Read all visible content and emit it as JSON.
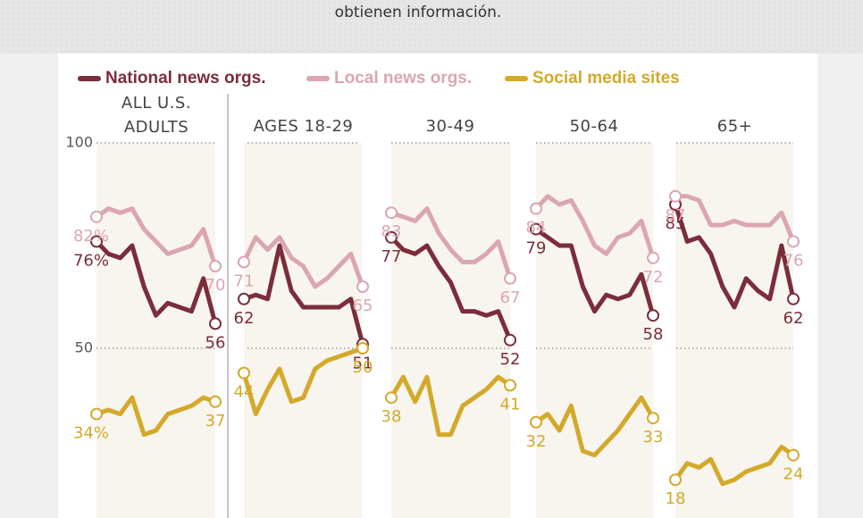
{
  "page": {
    "caption": "obtienen información."
  },
  "chart_data": [
    {
      "type": "line",
      "title": "ALL U.S. ADULTS",
      "ylim": [
        10,
        100
      ],
      "yticks": [
        50,
        100
      ],
      "grid": true,
      "series": [
        {
          "name": "National news orgs.",
          "color": "#7b2d3b",
          "values": [
            76,
            73,
            72,
            75,
            65,
            58,
            61,
            60,
            59,
            67,
            56
          ],
          "value_labels": [
            "76%",
            null,
            null,
            null,
            null,
            null,
            null,
            null,
            null,
            null,
            null
          ]
        },
        {
          "name": "Local news orgs.",
          "color": "#dba6b0",
          "values": [
            82,
            84,
            83,
            84,
            79,
            76,
            73,
            74,
            75,
            79,
            70
          ],
          "value_labels": [
            "82%",
            null,
            null,
            null,
            null,
            null,
            null,
            null,
            null,
            null,
            null
          ]
        },
        {
          "name": "Social media sites",
          "color": "#d4a92a",
          "values": [
            34,
            35,
            34,
            38,
            29,
            30,
            34,
            35,
            36,
            38,
            37
          ],
          "value_labels": [
            "34%",
            null,
            null,
            null,
            null,
            null,
            null,
            null,
            null,
            null,
            null
          ]
        }
      ]
    },
    {
      "type": "line",
      "title": "AGES 18-29",
      "ylim": [
        10,
        100
      ],
      "series": [
        {
          "color": "#7b2d3b",
          "values": [
            62,
            63,
            62,
            75,
            64,
            60,
            60,
            60,
            60,
            62,
            51
          ]
        },
        {
          "color": "#dba6b0",
          "values": [
            71,
            77,
            74,
            77,
            72,
            70,
            65,
            67,
            70,
            73,
            65
          ]
        },
        {
          "color": "#d4a92a",
          "values": [
            44,
            34,
            40,
            45,
            37,
            38,
            45,
            47,
            48,
            49,
            50
          ]
        }
      ]
    },
    {
      "type": "line",
      "title": "30-49",
      "ylim": [
        10,
        100
      ],
      "series": [
        {
          "color": "#7b2d3b",
          "values": [
            77,
            74,
            73,
            75,
            70,
            66,
            59,
            59,
            58,
            59,
            52
          ]
        },
        {
          "color": "#dba6b0",
          "values": [
            83,
            82,
            81,
            84,
            78,
            74,
            71,
            71,
            73,
            76,
            67
          ]
        },
        {
          "color": "#d4a92a",
          "values": [
            38,
            43,
            37,
            43,
            29,
            29,
            36,
            38,
            40,
            43,
            41
          ]
        }
      ]
    },
    {
      "type": "line",
      "title": "50-64",
      "ylim": [
        10,
        100
      ],
      "series": [
        {
          "color": "#7b2d3b",
          "values": [
            79,
            77,
            75,
            75,
            65,
            59,
            63,
            62,
            63,
            68,
            58
          ]
        },
        {
          "color": "#dba6b0",
          "values": [
            84,
            87,
            85,
            86,
            81,
            75,
            73,
            77,
            78,
            81,
            72
          ]
        },
        {
          "color": "#d4a92a",
          "values": [
            32,
            34,
            30,
            36,
            25,
            24,
            27,
            30,
            34,
            38,
            33
          ]
        }
      ]
    },
    {
      "type": "line",
      "title": "65+",
      "ylim": [
        10,
        100
      ],
      "series": [
        {
          "color": "#7b2d3b",
          "values": [
            85,
            76,
            77,
            73,
            65,
            60,
            67,
            64,
            62,
            75,
            62
          ]
        },
        {
          "color": "#dba6b0",
          "values": [
            87,
            87,
            86,
            80,
            80,
            81,
            80,
            80,
            80,
            83,
            76
          ]
        },
        {
          "color": "#d4a92a",
          "values": [
            18,
            22,
            21,
            23,
            17,
            18,
            20,
            21,
            22,
            26,
            24
          ]
        }
      ]
    }
  ]
}
